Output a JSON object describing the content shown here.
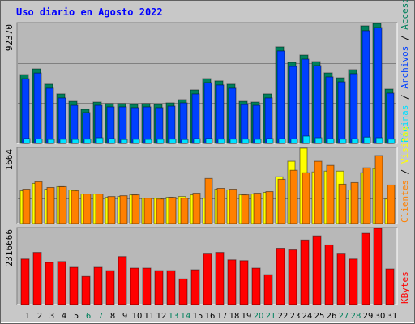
{
  "chart_data": [
    {
      "type": "bar",
      "title": "Uso diario en Agosto 2022",
      "categories": [
        "1",
        "2",
        "3",
        "4",
        "5",
        "6",
        "7",
        "8",
        "9",
        "10",
        "11",
        "12",
        "13",
        "14",
        "15",
        "16",
        "17",
        "18",
        "19",
        "20",
        "21",
        "22",
        "23",
        "24",
        "25",
        "26",
        "27",
        "28",
        "29",
        "30",
        "31"
      ],
      "category_colors": [
        "#000000",
        "#000000",
        "#000000",
        "#000000",
        "#000000",
        "#00805c",
        "#00805c",
        "#000000",
        "#000000",
        "#000000",
        "#000000",
        "#000000",
        "#00805c",
        "#00805c",
        "#000000",
        "#000000",
        "#000000",
        "#000000",
        "#000000",
        "#00805c",
        "#00805c",
        "#000000",
        "#000000",
        "#000000",
        "#000000",
        "#000000",
        "#00805c",
        "#00805c",
        "#000000",
        "#000000",
        "#000000"
      ],
      "legend_separator": " / ",
      "ylim": [
        0,
        92370
      ],
      "yticks": [
        92370
      ],
      "grid": true,
      "series": [
        {
          "name": "Accesos",
          "color": "#00805c",
          "values": [
            53000,
            57400,
            45600,
            38100,
            32400,
            26200,
            31800,
            30600,
            30600,
            30000,
            30600,
            30000,
            31200,
            33700,
            41200,
            49900,
            48100,
            45600,
            32400,
            31800,
            38100,
            74300,
            62400,
            68000,
            63000,
            54300,
            50500,
            56800,
            90500,
            92370,
            41800
          ]
        },
        {
          "name": "Archivos",
          "color": "#0040ff",
          "values": [
            49800,
            54200,
            42500,
            35000,
            29300,
            23700,
            29300,
            28100,
            28100,
            27500,
            28100,
            27500,
            28700,
            31200,
            38100,
            46800,
            45000,
            42500,
            29900,
            29300,
            35000,
            71200,
            59300,
            64900,
            59900,
            51200,
            47400,
            53700,
            86800,
            89200,
            38700
          ]
        },
        {
          "name": "Páginas",
          "color": "#00e0ff",
          "values": [
            3700,
            3400,
            3100,
            3200,
            3100,
            3300,
            4300,
            3600,
            3000,
            3200,
            3100,
            3200,
            3300,
            3000,
            3600,
            3800,
            3300,
            3300,
            3300,
            3200,
            3700,
            3500,
            3400,
            5600,
            4300,
            3500,
            3300,
            3500,
            4800,
            4300,
            3300
          ]
        }
      ]
    },
    {
      "type": "bar",
      "categories": [
        "1",
        "2",
        "3",
        "4",
        "5",
        "6",
        "7",
        "8",
        "9",
        "10",
        "11",
        "12",
        "13",
        "14",
        "15",
        "16",
        "17",
        "18",
        "19",
        "20",
        "21",
        "22",
        "23",
        "24",
        "25",
        "26",
        "27",
        "28",
        "29",
        "30",
        "31"
      ],
      "legend_separator": " / ",
      "ylim": [
        0,
        1664
      ],
      "yticks": [
        1664
      ],
      "grid": true,
      "series": [
        {
          "name": "Visitas",
          "color": "#ffff00",
          "values": [
            724,
            887,
            760,
            815,
            742,
            652,
            652,
            579,
            597,
            634,
            561,
            561,
            579,
            597,
            634,
            561,
            760,
            742,
            634,
            652,
            688,
            1032,
            1376,
            1664,
            1140,
            1158,
            1158,
            742,
            1122,
            1213,
            543
          ]
        },
        {
          "name": "Clientes",
          "color": "#ff8000",
          "values": [
            760,
            923,
            796,
            815,
            724,
            652,
            652,
            597,
            615,
            634,
            561,
            543,
            579,
            561,
            670,
            996,
            778,
            760,
            634,
            670,
            706,
            977,
            1177,
            1122,
            1376,
            1285,
            869,
            905,
            1231,
            1502,
            851
          ]
        }
      ]
    },
    {
      "type": "bar",
      "categories": [
        "1",
        "2",
        "3",
        "4",
        "5",
        "6",
        "7",
        "8",
        "9",
        "10",
        "11",
        "12",
        "13",
        "14",
        "15",
        "16",
        "17",
        "18",
        "19",
        "20",
        "21",
        "22",
        "23",
        "24",
        "25",
        "26",
        "27",
        "28",
        "29",
        "30",
        "31"
      ],
      "legend_separator": " / ",
      "ylim": [
        0,
        2316666
      ],
      "yticks": [
        2316666
      ],
      "grid": true,
      "series": [
        {
          "name": "KBytes",
          "color": "#ff0000",
          "values": [
            1385000,
            1586000,
            1284000,
            1309000,
            1133000,
            856000,
            1133000,
            1032000,
            1460000,
            1108000,
            1108000,
            1032000,
            1032000,
            781000,
            1058000,
            1561000,
            1586000,
            1360000,
            1335000,
            1108000,
            907000,
            1712000,
            1662000,
            1964000,
            2090000,
            1813000,
            1561000,
            1385000,
            2166000,
            2316666,
            1083000
          ]
        }
      ]
    }
  ]
}
